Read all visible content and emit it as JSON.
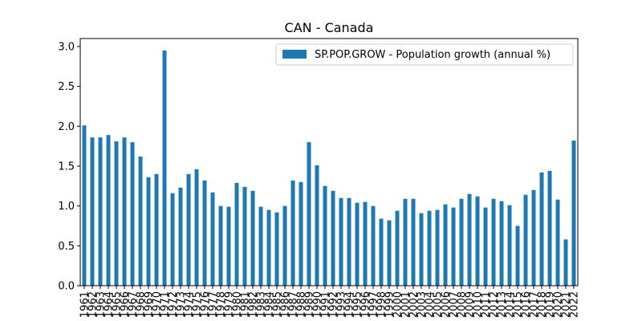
{
  "chart_data": {
    "type": "bar",
    "title": "CAN - Canada",
    "xlabel": "",
    "ylabel": "",
    "ylim": [
      0,
      3.1
    ],
    "yticks": [
      0.0,
      0.5,
      1.0,
      1.5,
      2.0,
      2.5,
      3.0
    ],
    "ytick_labels": [
      "0.0",
      "0.5",
      "1.0",
      "1.5",
      "2.0",
      "2.5",
      "3.0"
    ],
    "legend_position": "top-right",
    "grid": false,
    "bar_color": "#1f77b4",
    "categories": [
      "1961",
      "1962",
      "1963",
      "1964",
      "1965",
      "1966",
      "1967",
      "1968",
      "1969",
      "1970",
      "1971",
      "1972",
      "1973",
      "1974",
      "1975",
      "1976",
      "1977",
      "1978",
      "1979",
      "1980",
      "1981",
      "1982",
      "1983",
      "1984",
      "1985",
      "1986",
      "1987",
      "1988",
      "1989",
      "1990",
      "1991",
      "1992",
      "1993",
      "1994",
      "1995",
      "1996",
      "1997",
      "1998",
      "1999",
      "2000",
      "2001",
      "2002",
      "2003",
      "2004",
      "2005",
      "2006",
      "2007",
      "2008",
      "2009",
      "2010",
      "2011",
      "2012",
      "2013",
      "2014",
      "2015",
      "2016",
      "2017",
      "2018",
      "2019",
      "2020",
      "2021",
      "2022"
    ],
    "series": [
      {
        "name": "SP.POP.GROW - Population growth (annual %)",
        "values": [
          2.01,
          1.86,
          1.86,
          1.89,
          1.81,
          1.86,
          1.8,
          1.62,
          1.36,
          1.4,
          2.95,
          1.16,
          1.23,
          1.4,
          1.46,
          1.32,
          1.17,
          1.0,
          0.99,
          1.29,
          1.24,
          1.19,
          0.99,
          0.95,
          0.92,
          1.0,
          1.32,
          1.3,
          1.8,
          1.51,
          1.25,
          1.19,
          1.1,
          1.1,
          1.04,
          1.05,
          1.0,
          0.84,
          0.82,
          0.94,
          1.09,
          1.09,
          0.91,
          0.94,
          0.95,
          1.02,
          0.98,
          1.09,
          1.15,
          1.12,
          0.98,
          1.09,
          1.06,
          1.01,
          0.75,
          1.14,
          1.2,
          1.42,
          1.44,
          1.08,
          0.58,
          1.82
        ]
      }
    ]
  }
}
